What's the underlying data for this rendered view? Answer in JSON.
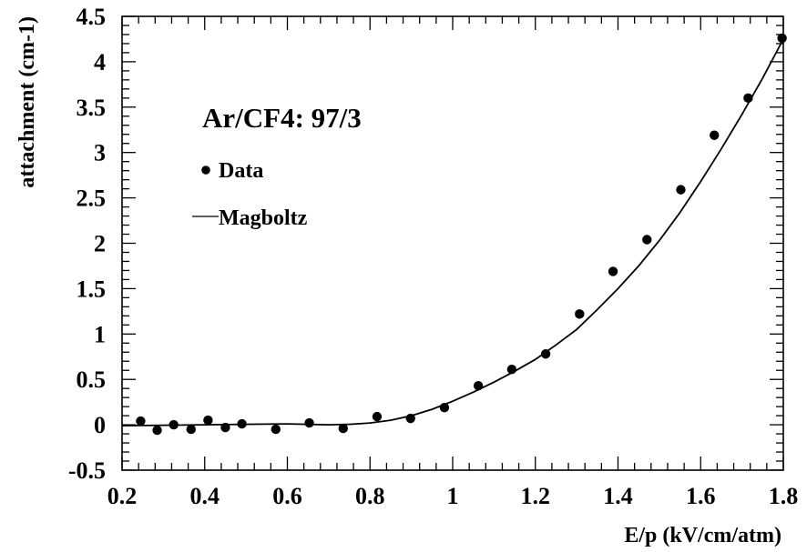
{
  "chart_data": {
    "type": "scatter",
    "title": "Ar/CF4: 97/3",
    "xlabel": "E/p (kV/cm/atm)",
    "ylabel": "attachment (cm-1)",
    "xlim": [
      0.2,
      1.8
    ],
    "ylim": [
      -0.5,
      4.5
    ],
    "x_ticks": [
      "0.2",
      "0.4",
      "0.6",
      "0.8",
      "1",
      "1.2",
      "1.4",
      "1.6",
      "1.8"
    ],
    "y_ticks": [
      "-0.5",
      "0",
      "0.5",
      "1",
      "1.5",
      "2",
      "2.5",
      "3",
      "3.5",
      "4",
      "4.5"
    ],
    "grid": false,
    "legend": {
      "placement": "upper-left",
      "entries": [
        {
          "label": "Data",
          "marker": "dot"
        },
        {
          "label": "Magboltz",
          "marker": "line"
        }
      ]
    },
    "series": [
      {
        "name": "Data",
        "type": "scatter",
        "x": [
          0.245,
          0.285,
          0.325,
          0.367,
          0.408,
          0.45,
          0.49,
          0.572,
          0.653,
          0.735,
          0.817,
          0.898,
          0.98,
          1.062,
          1.143,
          1.225,
          1.307,
          1.388,
          1.47,
          1.552,
          1.633,
          1.715,
          1.797
        ],
        "y": [
          0.04,
          -0.06,
          0.0,
          -0.05,
          0.05,
          -0.03,
          0.01,
          -0.05,
          0.02,
          -0.04,
          0.09,
          0.07,
          0.19,
          0.43,
          0.61,
          0.78,
          1.22,
          1.69,
          2.04,
          2.59,
          3.19,
          3.6,
          4.26
        ]
      },
      {
        "name": "Magboltz",
        "type": "line",
        "x": [
          0.2,
          0.4,
          0.6,
          0.7,
          0.75,
          0.8,
          0.85,
          0.9,
          0.95,
          1.0,
          1.05,
          1.1,
          1.15,
          1.2,
          1.25,
          1.3,
          1.35,
          1.4,
          1.45,
          1.5,
          1.55,
          1.6,
          1.65,
          1.7,
          1.75,
          1.8
        ],
        "y": [
          -0.01,
          0.0,
          0.01,
          0.0,
          0.005,
          0.02,
          0.05,
          0.1,
          0.17,
          0.26,
          0.36,
          0.47,
          0.59,
          0.72,
          0.88,
          1.05,
          1.27,
          1.5,
          1.75,
          2.03,
          2.34,
          2.68,
          3.04,
          3.42,
          3.82,
          4.25
        ]
      }
    ]
  }
}
